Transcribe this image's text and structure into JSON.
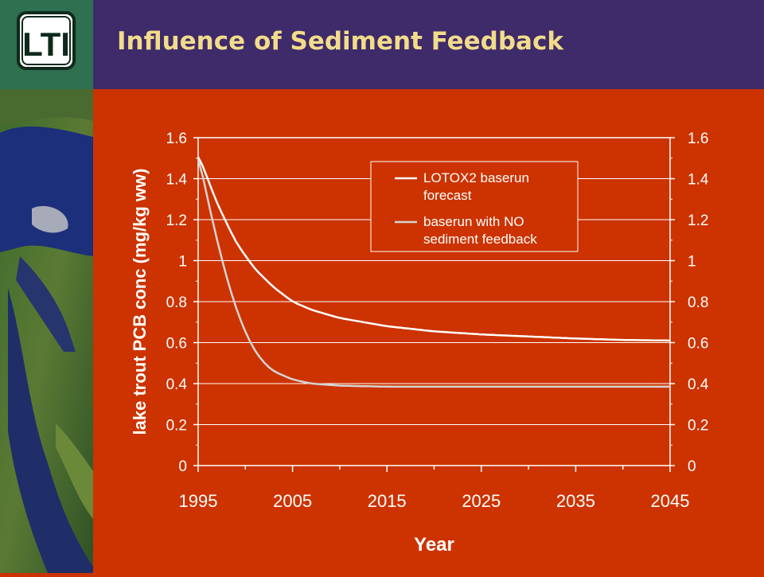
{
  "slide": {
    "title": "Influence of Sediment Feedback",
    "logo_text": "LTI",
    "background_color": "#cc3300",
    "title_bar_color": "#3f2a6a",
    "logo_box_color": "#2e7050",
    "title_color": "#f2dc8a"
  },
  "chart_data": {
    "type": "line",
    "xlabel": "Year",
    "ylabel": "lake trout PCB conc (mg/kg ww)",
    "xlim": [
      1995,
      2045
    ],
    "ylim": [
      0,
      1.6
    ],
    "x_ticks": [
      "1995",
      "2005",
      "2015",
      "2025",
      "2035",
      "2045"
    ],
    "y_ticks": [
      "0",
      "0.2",
      "0.4",
      "0.6",
      "0.8",
      "1",
      "1.2",
      "1.4",
      "1.6"
    ],
    "grid": true,
    "secondary_y_axis": true,
    "legend_placement": "top-right",
    "series": [
      {
        "name": "LOTOX2 baserun forecast",
        "color": "#ffffff",
        "x": [
          1995,
          1997,
          1999,
          2001,
          2003,
          2005,
          2007,
          2010,
          2015,
          2020,
          2025,
          2030,
          2035,
          2040,
          2045
        ],
        "values": [
          1.52,
          1.28,
          1.09,
          0.96,
          0.87,
          0.8,
          0.76,
          0.72,
          0.68,
          0.655,
          0.64,
          0.63,
          0.62,
          0.613,
          0.61
        ]
      },
      {
        "name": "baserun with NO sediment feedback",
        "color": "#d4d4d4",
        "x": [
          1995,
          1996,
          1997,
          1998,
          1999,
          2000,
          2001,
          2002,
          2003,
          2005,
          2007,
          2010,
          2015,
          2020,
          2030,
          2045
        ],
        "values": [
          1.52,
          1.3,
          1.1,
          0.92,
          0.77,
          0.65,
          0.56,
          0.5,
          0.46,
          0.42,
          0.4,
          0.39,
          0.385,
          0.385,
          0.385,
          0.385
        ]
      }
    ]
  }
}
